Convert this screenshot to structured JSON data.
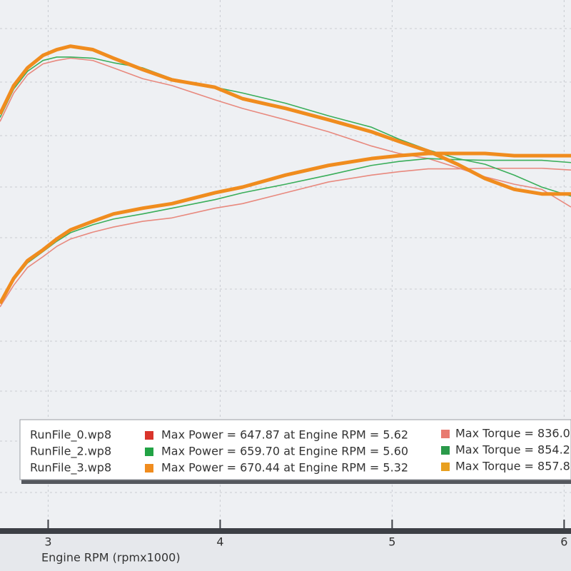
{
  "chart_data": {
    "type": "line",
    "x_label": "Engine RPM (rpmx1000)",
    "x": [
      2.72,
      2.8,
      2.88,
      2.97,
      3.05,
      3.13,
      3.26,
      3.38,
      3.55,
      3.72,
      3.97,
      4.13,
      4.38,
      4.63,
      4.88,
      5.04,
      5.21,
      5.38,
      5.54,
      5.71,
      5.87,
      6.04
    ],
    "xlim": [
      2.72,
      6.04
    ],
    "xticks": [
      3,
      4,
      5,
      6
    ],
    "ylim": [
      13,
      939
    ],
    "grid": true,
    "runs": [
      {
        "name": "RunFile_0.wp8",
        "color": "#d9342b",
        "line_color": "#e8897e",
        "torque_color": "#e87b70",
        "power_text": "Max Power = 647.87 at Engine RPM = 5.62",
        "torque_text": "Max Torque = 836.0",
        "power": [
          401,
          439,
          470,
          489,
          507,
          520,
          532,
          541,
          551,
          557,
          574,
          582,
          601,
          620,
          632,
          638,
          643,
          643,
          644,
          644,
          644,
          641
        ],
        "torque": [
          726,
          776,
          808,
          827,
          833,
          837,
          833,
          820,
          801,
          789,
          764,
          749,
          729,
          708,
          683,
          670,
          661,
          645,
          629,
          616,
          607,
          576
        ]
      },
      {
        "name": "RunFile_2.wp8",
        "color": "#22a345",
        "line_color": "#3aae5a",
        "torque_color": "#2a9a4a",
        "power_text": "Max Power = 659.70 at Engine RPM = 5.60",
        "torque_text": "Max Torque = 854.2",
        "power": [
          407,
          448,
          478,
          498,
          516,
          531,
          545,
          555,
          564,
          574,
          589,
          601,
          616,
          632,
          649,
          656,
          661,
          659,
          658,
          658,
          658,
          654
        ],
        "torque": [
          733,
          783,
          814,
          833,
          839,
          839,
          837,
          829,
          820,
          801,
          786,
          776,
          758,
          736,
          716,
          695,
          676,
          661,
          651,
          632,
          611,
          595
        ]
      },
      {
        "name": "RunFile_3.wp8",
        "color": "#f08c1e",
        "line_color": "#f08c1e",
        "torque_color": "#e8a020",
        "power_text": "Max Power = 670.44 at Engine RPM = 5.32",
        "torque_text": "Max Torque = 857.8",
        "power": [
          407,
          451,
          482,
          501,
          520,
          536,
          551,
          564,
          574,
          582,
          601,
          611,
          632,
          649,
          661,
          666,
          670,
          670,
          670,
          666,
          666,
          666
        ],
        "torque": [
          739,
          789,
          820,
          842,
          852,
          858,
          852,
          837,
          817,
          799,
          786,
          766,
          749,
          729,
          708,
          691,
          674,
          651,
          626,
          607,
          599,
          599
        ]
      }
    ]
  }
}
